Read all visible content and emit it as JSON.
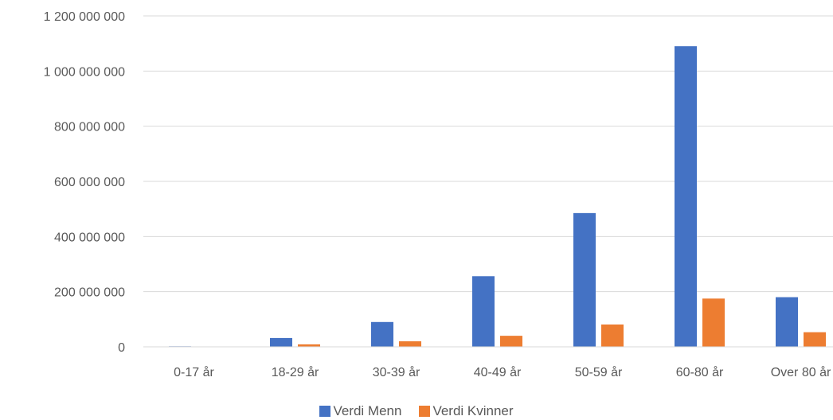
{
  "chart_data": {
    "type": "bar",
    "categories": [
      "0-17 år",
      "18-29 år",
      "30-39 år",
      "40-49 år",
      "50-59 år",
      "60-80 år",
      "Over 80 år"
    ],
    "series": [
      {
        "name": "Verdi Menn",
        "color": "#4472C4",
        "values": [
          2000000,
          32000000,
          90000000,
          256000000,
          485000000,
          1090000000,
          180000000
        ]
      },
      {
        "name": "Verdi Kvinner",
        "color": "#ED7D31",
        "values": [
          500000,
          9000000,
          20000000,
          40000000,
          81000000,
          175000000,
          53000000
        ]
      }
    ],
    "y_ticks": [
      "0",
      "200 000 000",
      "400 000 000",
      "600 000 000",
      "800 000 000",
      "1 000 000 000",
      "1 200 000 000"
    ],
    "ylim": [
      0,
      1200000000
    ],
    "grid": true,
    "legend_position": "bottom",
    "title": "",
    "xlabel": "",
    "ylabel": ""
  }
}
